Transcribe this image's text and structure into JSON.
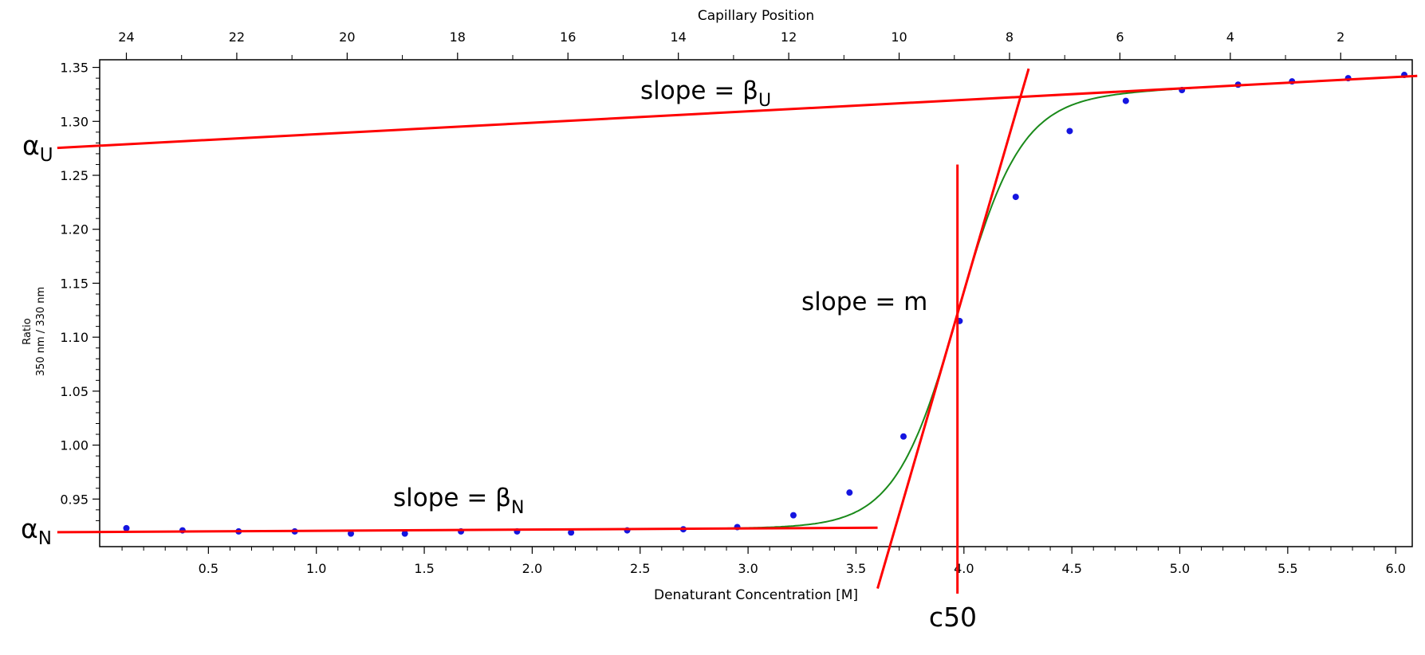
{
  "chart_data": {
    "type": "scatter",
    "title": "",
    "xlabel": "Denaturant Concentration [M]",
    "ylabel_line1": "Ratio",
    "ylabel_line2": "350 nm / 330 nm",
    "top_axis_label": "Capillary Position",
    "xlim": [
      0.0,
      6.1
    ],
    "ylim": [
      0.915,
      1.355
    ],
    "x_ticks": [
      "0.5",
      "1.0",
      "1.5",
      "2.0",
      "2.5",
      "3.0",
      "3.5",
      "4.0",
      "4.5",
      "5.0",
      "5.5",
      "6.0"
    ],
    "y_ticks": [
      "0.95",
      "1.00",
      "1.05",
      "1.10",
      "1.15",
      "1.20",
      "1.25",
      "1.30",
      "1.35"
    ],
    "top_ticks": [
      "24",
      "22",
      "20",
      "18",
      "16",
      "14",
      "12",
      "10",
      "8",
      "6",
      "4",
      "2"
    ],
    "grid": false,
    "series": [
      {
        "points": [
          {
            "x": 0.12,
            "y": 0.923
          },
          {
            "x": 0.38,
            "y": 0.921
          },
          {
            "x": 0.64,
            "y": 0.92
          },
          {
            "x": 0.9,
            "y": 0.92
          },
          {
            "x": 1.16,
            "y": 0.918
          },
          {
            "x": 1.41,
            "y": 0.918
          },
          {
            "x": 1.67,
            "y": 0.92
          },
          {
            "x": 1.93,
            "y": 0.92
          },
          {
            "x": 2.18,
            "y": 0.919
          },
          {
            "x": 2.44,
            "y": 0.921
          },
          {
            "x": 2.7,
            "y": 0.922
          },
          {
            "x": 2.95,
            "y": 0.924
          },
          {
            "x": 3.21,
            "y": 0.935
          },
          {
            "x": 3.47,
            "y": 0.956
          },
          {
            "x": 3.72,
            "y": 1.008
          },
          {
            "x": 3.98,
            "y": 1.115
          },
          {
            "x": 4.24,
            "y": 1.23
          },
          {
            "x": 4.49,
            "y": 1.291
          },
          {
            "x": 4.75,
            "y": 1.319
          },
          {
            "x": 5.01,
            "y": 1.329
          },
          {
            "x": 5.27,
            "y": 1.334
          },
          {
            "x": 5.52,
            "y": 1.337
          },
          {
            "x": 5.78,
            "y": 1.34
          },
          {
            "x": 6.04,
            "y": 1.343
          }
        ],
        "color": "#1515e0"
      }
    ],
    "fit": {
      "alpha_N": 0.9195,
      "beta_N": 0.0011,
      "alpha_U": 1.2775,
      "beta_U": 0.0106,
      "c50": 3.97,
      "m_width": 0.145,
      "color": "#1a8a1a"
    },
    "baseline_lines": {
      "upper": {
        "x_range": [
          -0.2,
          6.1
        ]
      },
      "lower": {
        "x_range": [
          -0.2,
          3.6
        ]
      }
    },
    "tangent": {
      "x_range": [
        3.6,
        4.3
      ]
    },
    "c50_line": {
      "x": 3.97,
      "y_range": [
        0.89,
        1.26
      ]
    },
    "line_color": "#ff0000",
    "annotations": {
      "slope_u_prefix": "slope = β",
      "slope_u_sub": "U",
      "slope_m": "slope = m",
      "slope_n_prefix": "slope = β",
      "slope_n_sub": "N",
      "alpha_u_main": "α",
      "alpha_u_sub": "U",
      "alpha_n_main": "α",
      "alpha_n_sub": "N",
      "c50": "c50"
    }
  }
}
